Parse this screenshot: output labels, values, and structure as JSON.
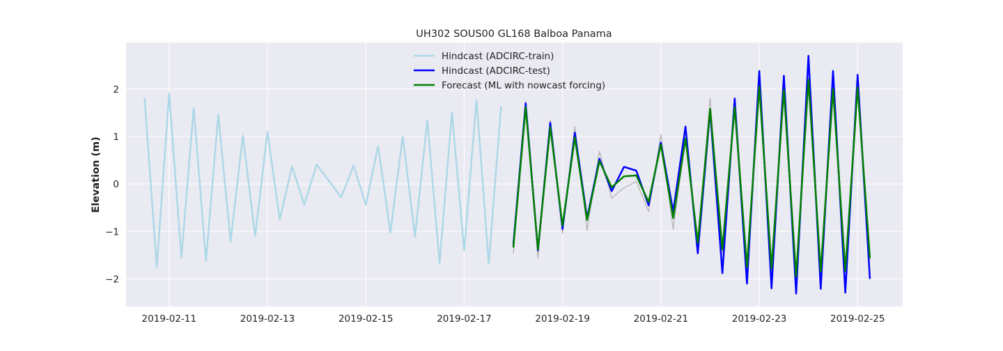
{
  "chart_data": {
    "type": "line",
    "title": "UH302 SOUS00 GL168 Balboa Panama",
    "xlabel": "",
    "ylabel": "Elevation (m)",
    "x_type": "date",
    "xlim": [
      "2019-02-10T03:00",
      "2019-02-25T22:00"
    ],
    "ylim": [
      -2.58,
      2.98
    ],
    "x_ticks": [
      "2019-02-11",
      "2019-02-13",
      "2019-02-15",
      "2019-02-17",
      "2019-02-19",
      "2019-02-21",
      "2019-02-23",
      "2019-02-25"
    ],
    "y_ticks": [
      -2,
      -1,
      0,
      1,
      2
    ],
    "y_tick_labels": [
      "−2",
      "−1",
      "0",
      "1",
      "2"
    ],
    "grid": true,
    "legend_position": "top-center",
    "background": "#eaeaf2",
    "series": [
      {
        "name": "Hindcast (ADCIRC-train)",
        "color": "#add8e6",
        "x": [
          "2019-02-10T12:00",
          "2019-02-10T18:00",
          "2019-02-11T00:00",
          "2019-02-11T06:00",
          "2019-02-11T12:00",
          "2019-02-11T18:00",
          "2019-02-12T00:00",
          "2019-02-12T06:00",
          "2019-02-12T12:00",
          "2019-02-12T18:00",
          "2019-02-13T00:00",
          "2019-02-13T06:00",
          "2019-02-13T12:00",
          "2019-02-13T18:00",
          "2019-02-14T00:00",
          "2019-02-14T12:00",
          "2019-02-14T18:00",
          "2019-02-15T00:00",
          "2019-02-15T06:00",
          "2019-02-15T12:00",
          "2019-02-15T18:00",
          "2019-02-16T00:00",
          "2019-02-16T06:00",
          "2019-02-16T12:00",
          "2019-02-16T18:00",
          "2019-02-17T00:00",
          "2019-02-17T06:00",
          "2019-02-17T12:00",
          "2019-02-17T18:00"
        ],
        "values": [
          1.82,
          -1.75,
          1.91,
          -1.55,
          1.6,
          -1.62,
          1.46,
          -1.22,
          1.02,
          -1.1,
          1.1,
          -0.75,
          0.37,
          -0.44,
          0.41,
          -0.28,
          0.39,
          -0.44,
          0.8,
          -1.03,
          1.01,
          -1.11,
          1.34,
          -1.67,
          1.51,
          -1.4,
          1.77,
          -1.68,
          1.64
        ]
      },
      {
        "name": "",
        "color": "#b0b0b0",
        "x": [
          "2019-02-18T00:00",
          "2019-02-18T06:00",
          "2019-02-18T12:00",
          "2019-02-18T18:00",
          "2019-02-19T00:00",
          "2019-02-19T06:00",
          "2019-02-19T12:00",
          "2019-02-19T18:00",
          "2019-02-20T00:00",
          "2019-02-20T06:00",
          "2019-02-20T12:00",
          "2019-02-20T18:00",
          "2019-02-21T00:00",
          "2019-02-21T06:00",
          "2019-02-21T12:00",
          "2019-02-21T18:00",
          "2019-02-22T00:00",
          "2019-02-22T06:00",
          "2019-02-22T12:00",
          "2019-02-22T18:00",
          "2019-02-23T00:00",
          "2019-02-23T06:00",
          "2019-02-23T12:00",
          "2019-02-23T18:00",
          "2019-02-24T00:00",
          "2019-02-24T06:00",
          "2019-02-24T12:00",
          "2019-02-24T18:00",
          "2019-02-25T00:00",
          "2019-02-25T06:00"
        ],
        "values": [
          -1.47,
          1.74,
          -1.57,
          1.35,
          -1.04,
          1.21,
          -0.98,
          0.69,
          -0.3,
          -0.08,
          0.05,
          -0.58,
          1.04,
          -0.95,
          0.94,
          -1.27,
          1.81,
          -1.48,
          1.6,
          -1.8,
          2.07,
          -1.83,
          2.07,
          -2.0,
          2.21,
          -1.96,
          1.97,
          -1.85,
          2.04,
          -1.6
        ]
      },
      {
        "name": "Hindcast (ADCIRC-test)",
        "color": "#0000ff",
        "x": [
          "2019-02-18T00:00",
          "2019-02-18T06:00",
          "2019-02-18T12:00",
          "2019-02-18T18:00",
          "2019-02-19T00:00",
          "2019-02-19T06:00",
          "2019-02-19T12:00",
          "2019-02-19T18:00",
          "2019-02-20T00:00",
          "2019-02-20T06:00",
          "2019-02-20T12:00",
          "2019-02-20T18:00",
          "2019-02-21T00:00",
          "2019-02-21T06:00",
          "2019-02-21T12:00",
          "2019-02-21T18:00",
          "2019-02-22T00:00",
          "2019-02-22T06:00",
          "2019-02-22T12:00",
          "2019-02-22T18:00",
          "2019-02-23T00:00",
          "2019-02-23T06:00",
          "2019-02-23T12:00",
          "2019-02-23T18:00",
          "2019-02-24T00:00",
          "2019-02-24T06:00",
          "2019-02-24T12:00",
          "2019-02-24T18:00",
          "2019-02-25T00:00",
          "2019-02-25T06:00"
        ],
        "values": [
          -1.28,
          1.7,
          -1.4,
          1.29,
          -0.95,
          1.08,
          -0.72,
          0.53,
          -0.15,
          0.36,
          0.28,
          -0.45,
          0.87,
          -0.58,
          1.21,
          -1.46,
          1.55,
          -1.88,
          1.8,
          -2.1,
          2.38,
          -2.2,
          2.28,
          -2.31,
          2.7,
          -2.21,
          2.38,
          -2.29,
          2.3,
          -2.0
        ]
      },
      {
        "name": "Forecast (ML with nowcast forcing)",
        "color": "#008000",
        "x": [
          "2019-02-18T00:00",
          "2019-02-18T06:00",
          "2019-02-18T12:00",
          "2019-02-18T18:00",
          "2019-02-19T00:00",
          "2019-02-19T06:00",
          "2019-02-19T12:00",
          "2019-02-19T18:00",
          "2019-02-20T00:00",
          "2019-02-20T06:00",
          "2019-02-20T12:00",
          "2019-02-20T18:00",
          "2019-02-21T00:00",
          "2019-02-21T06:00",
          "2019-02-21T12:00",
          "2019-02-21T18:00",
          "2019-02-22T00:00",
          "2019-02-22T06:00",
          "2019-02-22T12:00",
          "2019-02-22T18:00",
          "2019-02-23T00:00",
          "2019-02-23T06:00",
          "2019-02-23T12:00",
          "2019-02-23T18:00",
          "2019-02-24T00:00",
          "2019-02-24T06:00",
          "2019-02-24T12:00",
          "2019-02-24T18:00",
          "2019-02-25T00:00",
          "2019-02-25T06:00"
        ],
        "values": [
          -1.34,
          1.62,
          -1.38,
          1.2,
          -0.88,
          0.98,
          -0.76,
          0.48,
          -0.07,
          0.16,
          0.18,
          -0.38,
          0.83,
          -0.72,
          0.96,
          -1.24,
          1.58,
          -1.38,
          1.62,
          -1.75,
          2.05,
          -1.78,
          1.98,
          -1.95,
          2.2,
          -1.85,
          2.0,
          -1.83,
          2.03,
          -1.56
        ]
      }
    ]
  }
}
